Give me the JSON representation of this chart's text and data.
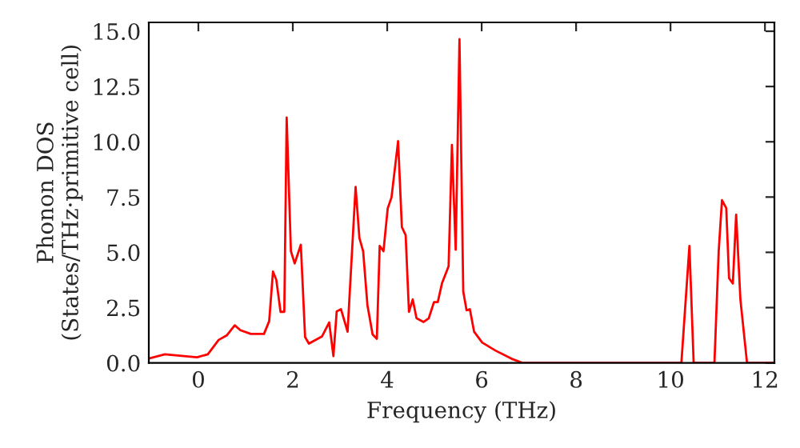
{
  "chart_data": {
    "type": "line",
    "xlabel": "Frequency (THz)",
    "ylabel": "Phonon DOS\n(States/THz·primitive cell)",
    "xlim": [
      -1.05,
      12.2
    ],
    "ylim": [
      0,
      15.4
    ],
    "xticks": [
      0,
      2,
      4,
      6,
      8,
      10,
      12
    ],
    "yticks": [
      {
        "value": 0,
        "label": "0.0"
      },
      {
        "value": 2.5,
        "label": "2.5"
      },
      {
        "value": 5,
        "label": "5.0"
      },
      {
        "value": 7.5,
        "label": "7.5"
      },
      {
        "value": 10,
        "label": "10.0"
      },
      {
        "value": 12.5,
        "label": "12.5"
      },
      {
        "value": 15,
        "label": "15.0"
      }
    ],
    "grid": false,
    "legend": false,
    "marker": "none",
    "line_style": "solid",
    "series": [
      {
        "color": "#ff0000",
        "x": [
          -1.05,
          -0.71,
          -0.03,
          0.2,
          0.43,
          0.6,
          0.77,
          0.89,
          1.11,
          1.39,
          1.5,
          1.58,
          1.65,
          1.74,
          1.82,
          1.87,
          1.96,
          2.04,
          2.17,
          2.26,
          2.34,
          2.62,
          2.77,
          2.86,
          2.93,
          3.02,
          3.16,
          3.33,
          3.41,
          3.49,
          3.58,
          3.69,
          3.78,
          3.84,
          3.92,
          4.01,
          4.09,
          4.23,
          4.31,
          4.39,
          4.46,
          4.54,
          4.62,
          4.77,
          4.88,
          4.99,
          5.07,
          5.16,
          5.3,
          5.37,
          5.45,
          5.53,
          5.61,
          5.68,
          5.75,
          5.84,
          6.01,
          6.29,
          6.63,
          6.86,
          10.23,
          10.4,
          10.49,
          10.93,
          11.02,
          11.09,
          11.18,
          11.24,
          11.32,
          11.39,
          11.48,
          11.62,
          12.2
        ],
        "values": [
          0.2,
          0.39,
          0.25,
          0.39,
          1.04,
          1.24,
          1.7,
          1.48,
          1.31,
          1.31,
          1.89,
          4.13,
          3.76,
          2.31,
          2.31,
          11.1,
          5.05,
          4.5,
          5.34,
          1.17,
          0.87,
          1.2,
          1.83,
          0.31,
          2.33,
          2.43,
          1.41,
          7.96,
          5.65,
          5.05,
          2.62,
          1.29,
          1.09,
          5.29,
          5.05,
          6.99,
          7.48,
          10.03,
          6.14,
          5.78,
          2.31,
          2.87,
          2.02,
          1.85,
          2.02,
          2.75,
          2.75,
          3.6,
          4.37,
          9.86,
          5.12,
          14.64,
          3.23,
          2.38,
          2.43,
          1.41,
          0.92,
          0.56,
          0.19,
          0,
          0,
          5.29,
          0,
          0,
          5.05,
          7.36,
          7.0,
          3.83,
          3.59,
          6.7,
          2.87,
          0,
          0
        ]
      }
    ]
  }
}
